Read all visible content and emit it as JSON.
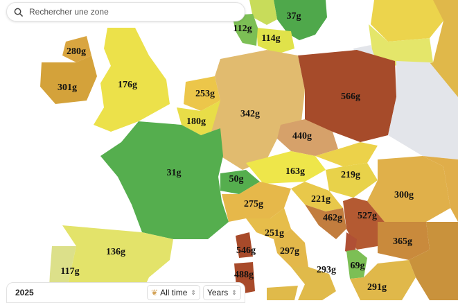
{
  "search": {
    "placeholder": "Rechercher une zone"
  },
  "timeline": {
    "year": "2025",
    "range": "All time",
    "granularity": "Years"
  },
  "zones": [
    {
      "id": "norway-south",
      "value": "37g"
    },
    {
      "id": "denmark",
      "value": "112g"
    },
    {
      "id": "sweden-south",
      "value": "114g"
    },
    {
      "id": "northern-ireland",
      "value": "280g"
    },
    {
      "id": "ireland",
      "value": "301g"
    },
    {
      "id": "great-britain",
      "value": "176g"
    },
    {
      "id": "netherlands",
      "value": "253g"
    },
    {
      "id": "belgium",
      "value": "180g"
    },
    {
      "id": "germany",
      "value": "342g"
    },
    {
      "id": "poland",
      "value": "566g"
    },
    {
      "id": "czechia",
      "value": "440g"
    },
    {
      "id": "france",
      "value": "31g"
    },
    {
      "id": "switzerland",
      "value": "50g"
    },
    {
      "id": "austria",
      "value": "163g"
    },
    {
      "id": "hungary",
      "value": "219g"
    },
    {
      "id": "romania",
      "value": "300g"
    },
    {
      "id": "italy-north",
      "value": "275g"
    },
    {
      "id": "slovenia-croatia",
      "value": "221g"
    },
    {
      "id": "bosnia",
      "value": "462g"
    },
    {
      "id": "serbia",
      "value": "527g"
    },
    {
      "id": "bulgaria",
      "value": "365g"
    },
    {
      "id": "italy-central-north",
      "value": "251g"
    },
    {
      "id": "italy-central-south",
      "value": "297g"
    },
    {
      "id": "corsica-sardinia",
      "value": "546g"
    },
    {
      "id": "sardinia",
      "value": "488g"
    },
    {
      "id": "italy-south",
      "value": "293g"
    },
    {
      "id": "north-macedonia-albania",
      "value": "69g"
    },
    {
      "id": "greece",
      "value": "291g"
    },
    {
      "id": "spain",
      "value": "136g"
    },
    {
      "id": "portugal",
      "value": "117g"
    }
  ],
  "colors": {
    "sea": "#ffffff",
    "very_low": "#55ae4e",
    "low": "#7ab84e",
    "low_mid": "#dfe24a",
    "mid": "#efd24a",
    "mid_high": "#e0b84a",
    "tan": "#d9b56a",
    "high": "#b8632f",
    "very_high": "#a04a28",
    "no_data": "#e3e5ea"
  }
}
